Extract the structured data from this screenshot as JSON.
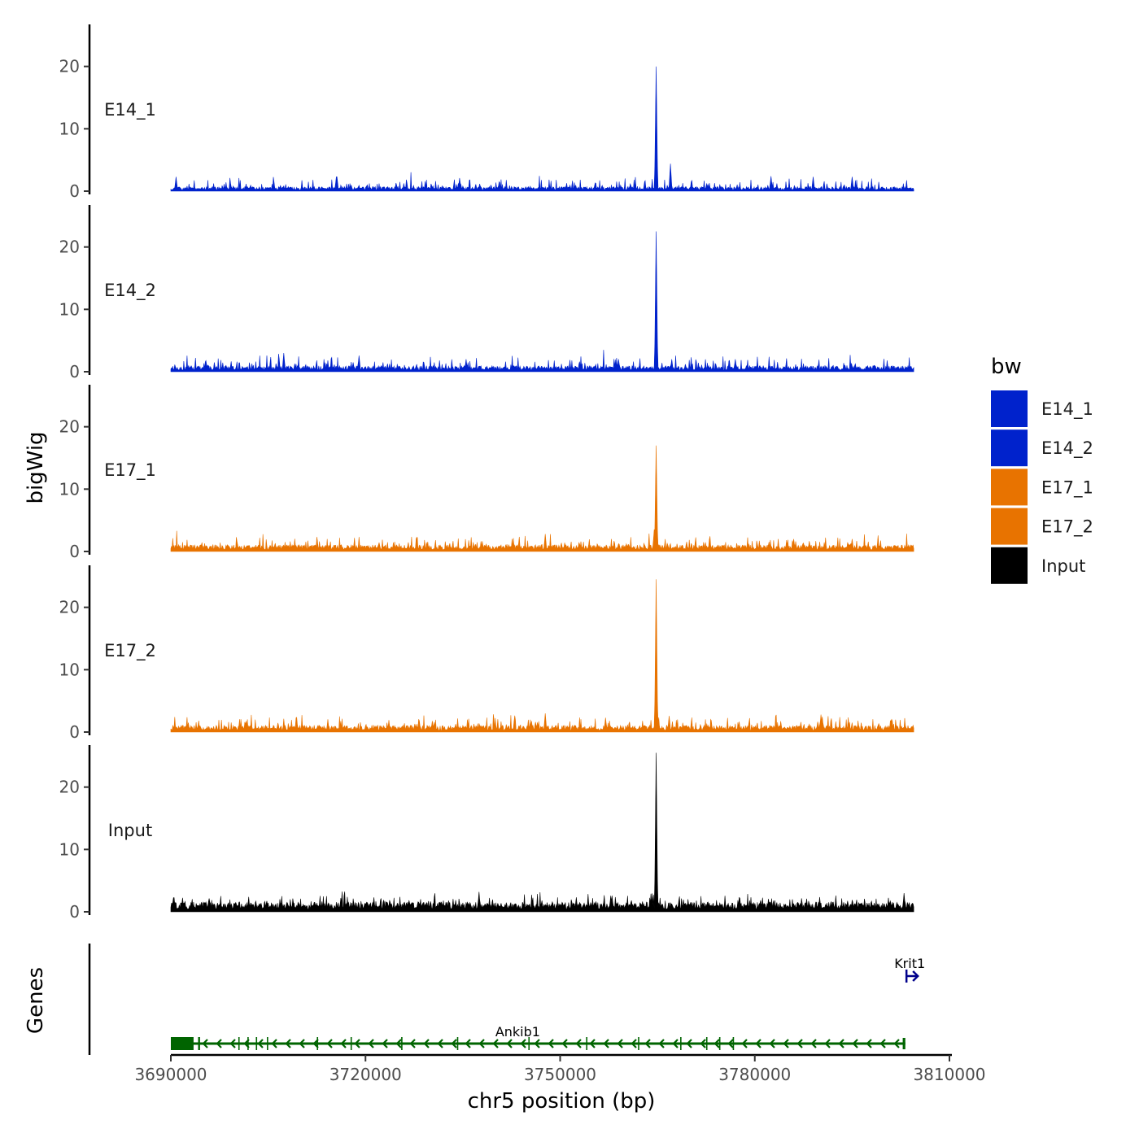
{
  "chart_data": {
    "type": "area",
    "y_title": "bigWig",
    "genes_title": "Genes",
    "x_title": "chr5 position (bp)",
    "xlim": [
      3690000,
      3810000
    ],
    "x_ticks": [
      3690000,
      3720000,
      3750000,
      3780000,
      3810000
    ],
    "x_tick_labels": [
      "3690000",
      "3720000",
      "3750000",
      "3780000",
      "3810000"
    ],
    "ylim": [
      0,
      27
    ],
    "y_ticks": [
      0,
      10,
      20
    ],
    "y_tick_labels": [
      "0",
      "10",
      "20"
    ],
    "data_range": [
      3690000,
      3804500
    ],
    "peak_position": 3764800,
    "tracks": [
      {
        "name": "E14_1",
        "color": "#0022CC",
        "baseline": 0.6,
        "noise": 1.6,
        "seed": 11,
        "peaks": [
          [
            3764800,
            20.0
          ],
          [
            3767000,
            4.4
          ],
          [
            3690800,
            2.3
          ],
          [
            3715500,
            2.3
          ],
          [
            3715600,
            2.3
          ],
          [
            3734500,
            2.1
          ],
          [
            3782500,
            2.4
          ],
          [
            3789000,
            2.3
          ],
          [
            3795000,
            2.3
          ]
        ]
      },
      {
        "name": "E14_2",
        "color": "#0022CC",
        "baseline": 0.8,
        "noise": 1.7,
        "seed": 23,
        "peaks": [
          [
            3764800,
            22.5
          ],
          [
            3707400,
            3.0
          ],
          [
            3719000,
            2.6
          ],
          [
            3735500,
            2.0
          ],
          [
            3759000,
            2.0
          ],
          [
            3767200,
            2.0
          ],
          [
            3777000,
            2.0
          ]
        ]
      },
      {
        "name": "E17_1",
        "color": "#E87300",
        "baseline": 0.9,
        "noise": 1.8,
        "seed": 37,
        "peaks": [
          [
            3764800,
            17.0
          ],
          [
            3747700,
            2.8
          ],
          [
            3764500,
            3.5
          ],
          [
            3795000,
            2.0
          ],
          [
            3786000,
            2.0
          ]
        ]
      },
      {
        "name": "E17_2",
        "color": "#E87300",
        "baseline": 0.9,
        "noise": 1.9,
        "seed": 41,
        "peaks": [
          [
            3764800,
            24.5
          ],
          [
            3747700,
            3.0
          ],
          [
            3766800,
            2.6
          ],
          [
            3757000,
            2.3
          ],
          [
            3790200,
            2.8
          ]
        ]
      },
      {
        "name": "Input",
        "color": "#000000",
        "baseline": 1.3,
        "noise": 1.7,
        "seed": 59,
        "peaks": [
          [
            3764800,
            25.5
          ],
          [
            3737500,
            3.2
          ],
          [
            3758000,
            2.6
          ],
          [
            3803000,
            3.0
          ]
        ]
      }
    ],
    "legend": {
      "title": "bw",
      "items": [
        {
          "label": "E14_1",
          "color": "#0022CC"
        },
        {
          "label": "E14_2",
          "color": "#0022CC"
        },
        {
          "label": "E17_1",
          "color": "#E87300"
        },
        {
          "label": "E17_2",
          "color": "#E87300"
        },
        {
          "label": "Input",
          "color": "#000000"
        }
      ]
    },
    "genes": [
      {
        "name": "Ankib1",
        "start": 3690000,
        "end": 3803200,
        "strand": "-",
        "color": "#006400",
        "exons": [
          [
            3690000,
            3693500
          ],
          [
            3694200,
            3694500
          ],
          [
            3700400,
            3700600
          ],
          [
            3701800,
            3702000
          ],
          [
            3703100,
            3703300
          ],
          [
            3704800,
            3705000
          ],
          [
            3712500,
            3712700
          ],
          [
            3717700,
            3717900
          ],
          [
            3725500,
            3725700
          ],
          [
            3734100,
            3734300
          ],
          [
            3745100,
            3745300
          ],
          [
            3754000,
            3754200
          ],
          [
            3762000,
            3762200
          ],
          [
            3768500,
            3768700
          ],
          [
            3772500,
            3772700
          ],
          [
            3774500,
            3774700
          ],
          [
            3776600,
            3776800
          ],
          [
            3802800,
            3803200
          ]
        ]
      },
      {
        "name": "Krit1",
        "start": 3803000,
        "end": 3806000,
        "strand": "+",
        "color": "#00008B",
        "exons": []
      }
    ]
  }
}
